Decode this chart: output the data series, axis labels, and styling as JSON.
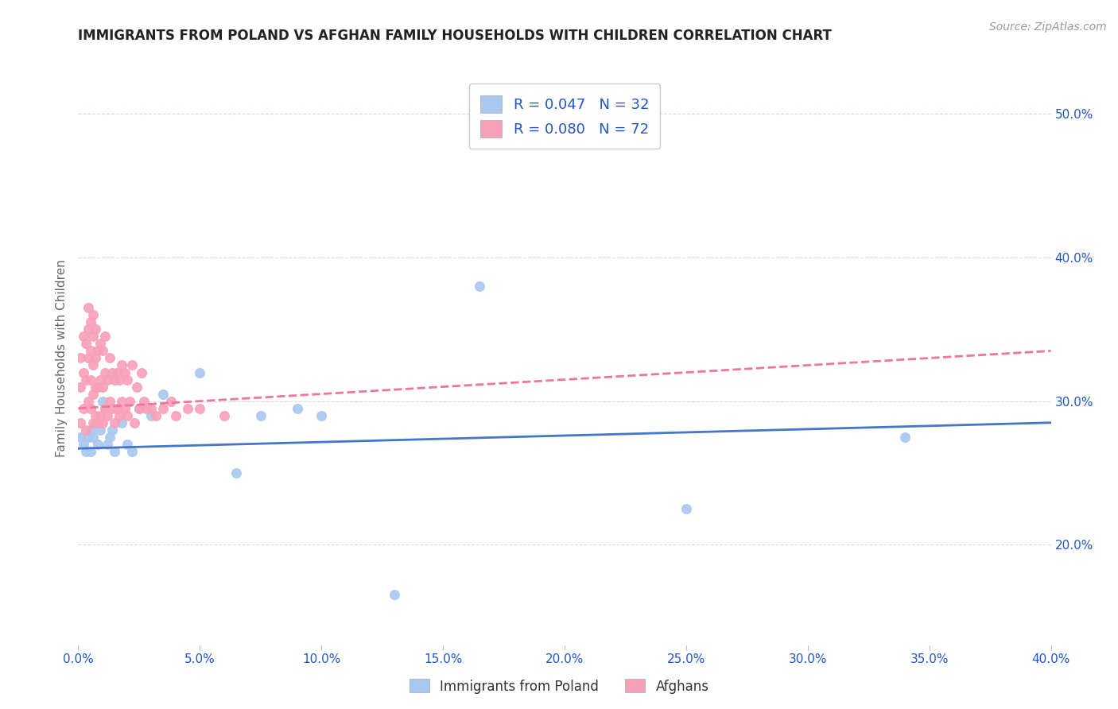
{
  "title": "IMMIGRANTS FROM POLAND VS AFGHAN FAMILY HOUSEHOLDS WITH CHILDREN CORRELATION CHART",
  "source": "Source: ZipAtlas.com",
  "ylabel": "Family Households with Children",
  "xlim": [
    0.0,
    0.4
  ],
  "ylim": [
    0.13,
    0.53
  ],
  "xticks": [
    0.0,
    0.05,
    0.1,
    0.15,
    0.2,
    0.25,
    0.3,
    0.35,
    0.4
  ],
  "yticks_right": [
    0.2,
    0.3,
    0.4,
    0.5
  ],
  "poland_R": 0.047,
  "poland_N": 32,
  "afghan_R": 0.08,
  "afghan_N": 72,
  "poland_color": "#a8c8f0",
  "afghan_color": "#f8a0b8",
  "poland_line_color": "#4477cc",
  "afghan_line_color": "#ee7799",
  "legend_R_color": "#2255cc",
  "background_color": "#ffffff",
  "grid_color": "#d8d8e8",
  "poland_x": [
    0.001,
    0.002,
    0.003,
    0.004,
    0.005,
    0.005,
    0.006,
    0.007,
    0.008,
    0.009,
    0.01,
    0.011,
    0.012,
    0.013,
    0.014,
    0.015,
    0.016,
    0.018,
    0.02,
    0.022,
    0.025,
    0.03,
    0.035,
    0.05,
    0.065,
    0.075,
    0.09,
    0.1,
    0.13,
    0.165,
    0.25,
    0.34
  ],
  "poland_y": [
    0.275,
    0.27,
    0.265,
    0.275,
    0.28,
    0.265,
    0.275,
    0.285,
    0.27,
    0.28,
    0.3,
    0.295,
    0.27,
    0.275,
    0.28,
    0.265,
    0.295,
    0.285,
    0.27,
    0.265,
    0.295,
    0.29,
    0.305,
    0.32,
    0.25,
    0.29,
    0.295,
    0.29,
    0.165,
    0.38,
    0.225,
    0.275
  ],
  "afghan_x": [
    0.001,
    0.001,
    0.001,
    0.002,
    0.002,
    0.002,
    0.003,
    0.003,
    0.003,
    0.004,
    0.004,
    0.004,
    0.004,
    0.005,
    0.005,
    0.005,
    0.005,
    0.006,
    0.006,
    0.006,
    0.006,
    0.006,
    0.007,
    0.007,
    0.007,
    0.007,
    0.008,
    0.008,
    0.008,
    0.009,
    0.009,
    0.009,
    0.01,
    0.01,
    0.01,
    0.011,
    0.011,
    0.011,
    0.012,
    0.012,
    0.013,
    0.013,
    0.014,
    0.014,
    0.015,
    0.015,
    0.016,
    0.016,
    0.017,
    0.017,
    0.018,
    0.018,
    0.019,
    0.019,
    0.02,
    0.02,
    0.021,
    0.022,
    0.023,
    0.024,
    0.025,
    0.026,
    0.027,
    0.028,
    0.03,
    0.032,
    0.035,
    0.038,
    0.04,
    0.045,
    0.05,
    0.06
  ],
  "afghan_y": [
    0.285,
    0.31,
    0.33,
    0.295,
    0.32,
    0.345,
    0.28,
    0.315,
    0.34,
    0.3,
    0.33,
    0.35,
    0.365,
    0.295,
    0.315,
    0.335,
    0.355,
    0.285,
    0.305,
    0.325,
    0.345,
    0.36,
    0.29,
    0.31,
    0.33,
    0.35,
    0.285,
    0.31,
    0.335,
    0.29,
    0.315,
    0.34,
    0.285,
    0.31,
    0.335,
    0.295,
    0.32,
    0.345,
    0.29,
    0.315,
    0.3,
    0.33,
    0.295,
    0.32,
    0.285,
    0.315,
    0.295,
    0.32,
    0.29,
    0.315,
    0.3,
    0.325,
    0.295,
    0.32,
    0.29,
    0.315,
    0.3,
    0.325,
    0.285,
    0.31,
    0.295,
    0.32,
    0.3,
    0.295,
    0.295,
    0.29,
    0.295,
    0.3,
    0.29,
    0.295,
    0.295,
    0.29
  ],
  "poland_line_x": [
    0.0,
    0.4
  ],
  "poland_line_y": [
    0.267,
    0.285
  ],
  "afghan_line_x": [
    0.0,
    0.4
  ],
  "afghan_line_y": [
    0.295,
    0.335
  ],
  "title_fontsize": 12,
  "source_fontsize": 10,
  "tick_fontsize": 11,
  "ylabel_fontsize": 11
}
